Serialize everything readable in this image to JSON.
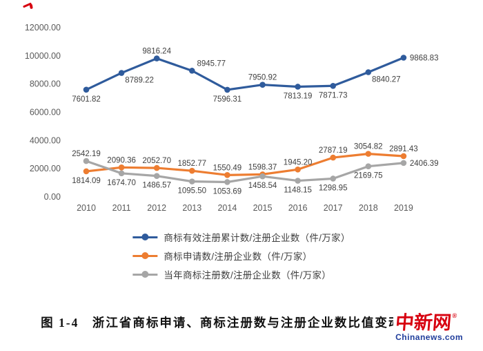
{
  "chart_data": {
    "type": "line",
    "title": "",
    "categories": [
      "2010",
      "2011",
      "2012",
      "2013",
      "2014",
      "2015",
      "2016",
      "2017",
      "2018",
      "2019"
    ],
    "yticks": [
      "0.00",
      "2000.00",
      "4000.00",
      "6000.00",
      "8000.00",
      "10000.00",
      "12000.00"
    ],
    "ylim": [
      0,
      12000
    ],
    "grid": false,
    "legend_position": "bottom",
    "series": [
      {
        "name": "商标有效注册累计数/注册企业数（件/万家）",
        "color": "#2F5B9C",
        "values": [
          7601.82,
          8789.22,
          9816.24,
          8945.77,
          7596.31,
          7950.92,
          7813.19,
          7871.73,
          8840.27,
          9868.83
        ],
        "labels": [
          "7601.82",
          "8789.22",
          "9816.24",
          "8945.77",
          "7596.31",
          "7950.92",
          "7813.19",
          "7871.73",
          "8840.27",
          "9868.83"
        ],
        "label_pos": [
          "below",
          "below-right",
          "above",
          "above-right",
          "below",
          "above",
          "below",
          "below",
          "below-right",
          "right"
        ]
      },
      {
        "name": "商标申请数/注册企业数（件/万家）",
        "color": "#ED7D31",
        "values": [
          1814.09,
          2090.36,
          2052.7,
          1852.77,
          1550.49,
          1598.37,
          1945.2,
          2787.19,
          3054.82,
          2891.43
        ],
        "labels": [
          "1814.09",
          "2090.36",
          "2052.70",
          "1852.77",
          "1550.49",
          "1598.37",
          "1945.20",
          "2787.19",
          "3054.82",
          "2891.43"
        ],
        "label_pos": [
          "below",
          "above",
          "above",
          "above",
          "above",
          "above",
          "above",
          "above",
          "above",
          "above"
        ]
      },
      {
        "name": "当年商标注册数/注册企业数（件/万家）",
        "color": "#A6A6A6",
        "values": [
          2542.19,
          1674.7,
          1486.57,
          1095.5,
          1053.69,
          1458.54,
          1148.15,
          1298.95,
          2169.75,
          2406.39
        ],
        "labels": [
          "2542.19",
          "1674.70",
          "1486.57",
          "1095.50",
          "1053.69",
          "1458.54",
          "1148.15",
          "1298.95",
          "2169.75",
          "2406.39"
        ],
        "label_pos": [
          "above",
          "below",
          "below",
          "below",
          "below",
          "below",
          "below",
          "below",
          "below",
          "right"
        ]
      }
    ]
  },
  "caption": {
    "text": "图 1-4　浙江省商标申请、商标注册数与注册企业数比值变动情况图"
  },
  "watermark": {
    "cn": "中新网",
    "reg": "®",
    "en": "Chinanews.com",
    "red": "#d7000f",
    "blue": "#1f3c9b"
  }
}
